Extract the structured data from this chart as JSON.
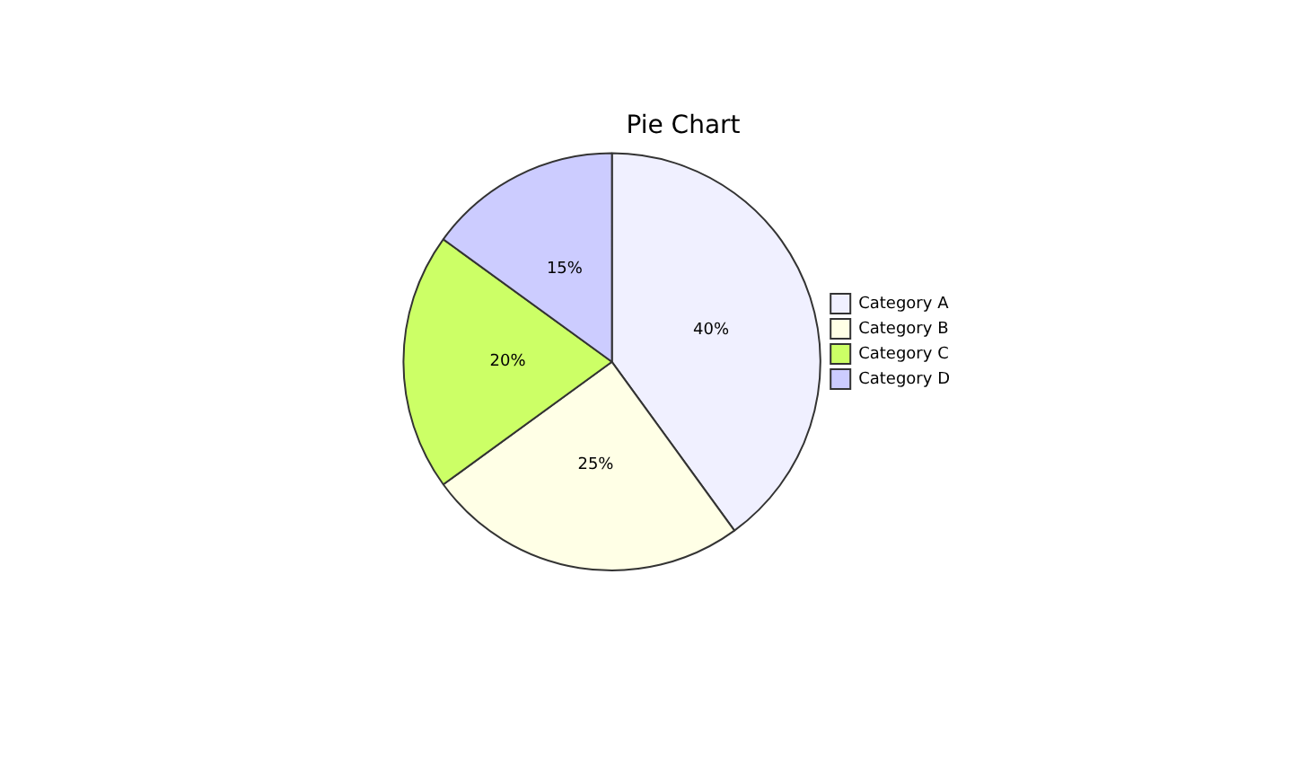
{
  "chart_data": {
    "type": "pie",
    "title": "Pie Chart",
    "categories": [
      "Category A",
      "Category B",
      "Category C",
      "Category D"
    ],
    "values": [
      40,
      25,
      20,
      15
    ],
    "colors": [
      "#f0f0ff",
      "#ffffe6",
      "#ccff66",
      "#ccccff"
    ],
    "value_labels": [
      "40%",
      "25%",
      "20%",
      "15%"
    ],
    "legend": "right"
  }
}
